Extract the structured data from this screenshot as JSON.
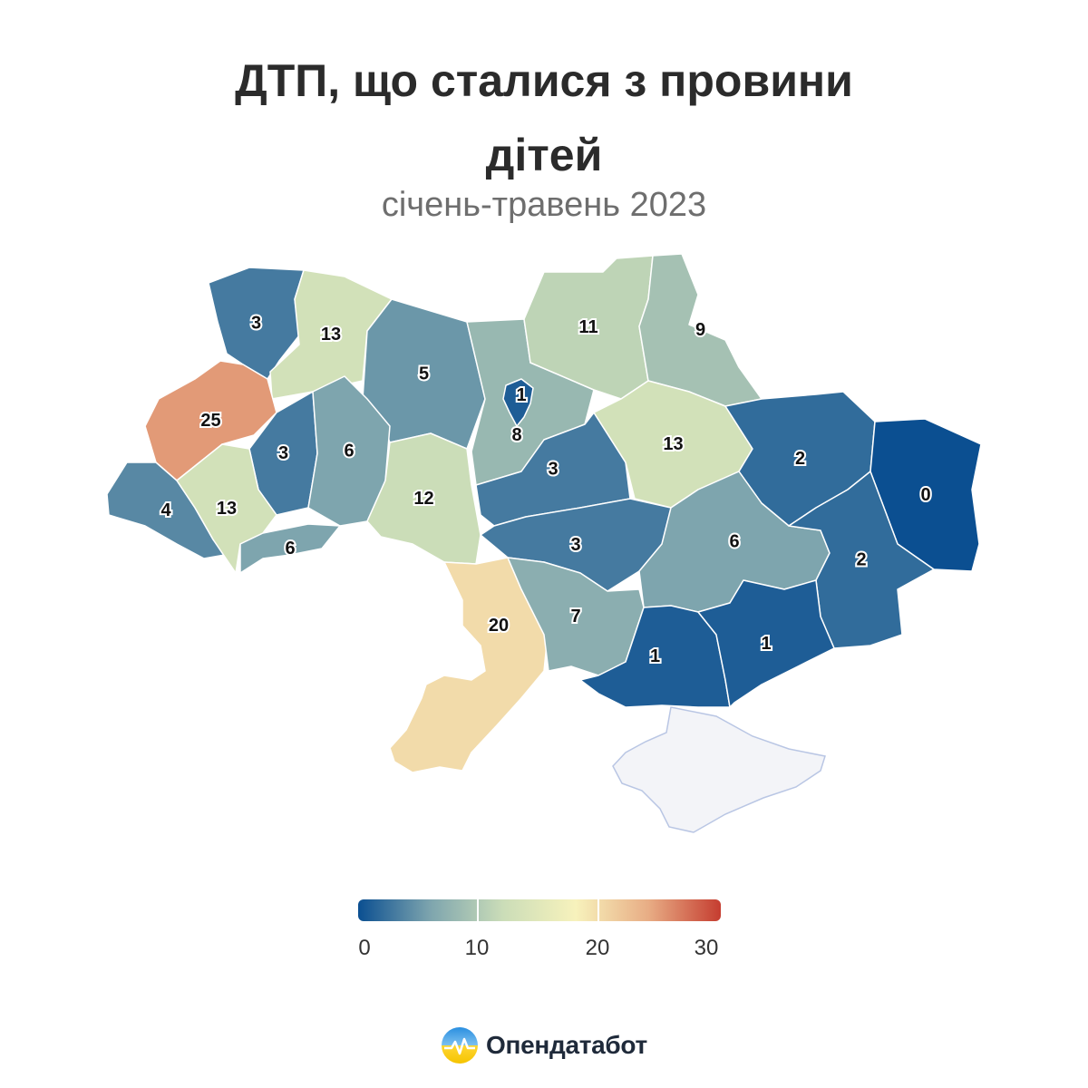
{
  "title_lines": [
    "ДТП, що сталися з провини",
    "дітей"
  ],
  "subtitle": "січень-травень 2023",
  "colors": {
    "scale": [
      "#0b4f91",
      "#7ea5ae",
      "#cbddb8",
      "#f7f2bc",
      "#e8ad85",
      "#c53d30"
    ],
    "no_data": "#f3f4f8",
    "label_text": "#111111"
  },
  "map_data": {
    "type": "choropleth",
    "scale": {
      "min": 0,
      "max": 30
    },
    "regions": [
      {
        "name": "Volyn",
        "value": 3
      },
      {
        "name": "Rivne",
        "value": 13
      },
      {
        "name": "Zhytomyr",
        "value": 5
      },
      {
        "name": "Kyiv oblast",
        "value": 8
      },
      {
        "name": "Kyiv city",
        "value": 1
      },
      {
        "name": "Chernihiv",
        "value": 11
      },
      {
        "name": "Sumy",
        "value": 9
      },
      {
        "name": "Lviv",
        "value": 25
      },
      {
        "name": "Ternopil",
        "value": 3
      },
      {
        "name": "Khmelnytskyi",
        "value": 6
      },
      {
        "name": "Zakarpattia",
        "value": 4
      },
      {
        "name": "Ivano-Frankivsk",
        "value": 13
      },
      {
        "name": "Chernivtsi",
        "value": 6
      },
      {
        "name": "Vinnytsia",
        "value": 12
      },
      {
        "name": "Cherkasy",
        "value": 3
      },
      {
        "name": "Poltava",
        "value": 13
      },
      {
        "name": "Kharkiv",
        "value": 2
      },
      {
        "name": "Luhansk",
        "value": 0
      },
      {
        "name": "Kirovohrad",
        "value": 3
      },
      {
        "name": "Dnipropetrovsk",
        "value": 6
      },
      {
        "name": "Donetsk",
        "value": 2
      },
      {
        "name": "Odesa",
        "value": 20
      },
      {
        "name": "Mykolaiv",
        "value": 7
      },
      {
        "name": "Kherson",
        "value": 1
      },
      {
        "name": "Zaporizhzhia",
        "value": 1
      }
    ],
    "no_data_regions": [
      "Crimea"
    ]
  },
  "legend": {
    "ticks": [
      "0",
      "10",
      "20",
      "30"
    ]
  },
  "brand": {
    "name": "Опендатабот"
  }
}
